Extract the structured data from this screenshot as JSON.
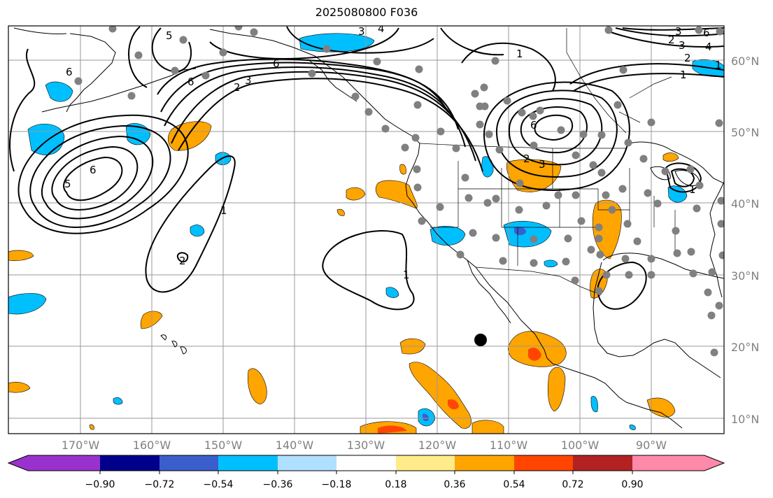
{
  "title": "2025080800 F036",
  "map": {
    "lon_labels": [
      "170°W",
      "160°W",
      "150°W",
      "140°W",
      "130°W",
      "120°W",
      "110°W",
      "100°W",
      "90°W"
    ],
    "lat_labels": [
      "60°N",
      "50°N",
      "40°N",
      "30°N",
      "20°N",
      "10°N"
    ],
    "contour_labels": [
      "5",
      "4",
      "3",
      "6",
      "6",
      "2",
      "3",
      "1",
      "6",
      "3",
      "2",
      "1",
      "6",
      "5",
      "6",
      "1",
      "2",
      "1",
      "3",
      "2",
      "6",
      "4",
      "3",
      "2",
      "1",
      "1"
    ]
  },
  "colorbar": {
    "tick_labels": [
      "−0.90",
      "−0.72",
      "−0.54",
      "−0.36",
      "−0.18",
      "0.18",
      "0.36",
      "0.54",
      "0.72",
      "0.90"
    ],
    "colors": [
      "#9932cc",
      "#00008b",
      "#3a5fcd",
      "#00bfff",
      "#b0e0ff",
      "#ffffff",
      "#ffeb8a",
      "#ffa500",
      "#ff4500",
      "#b22222",
      "#ff89a8"
    ]
  }
}
